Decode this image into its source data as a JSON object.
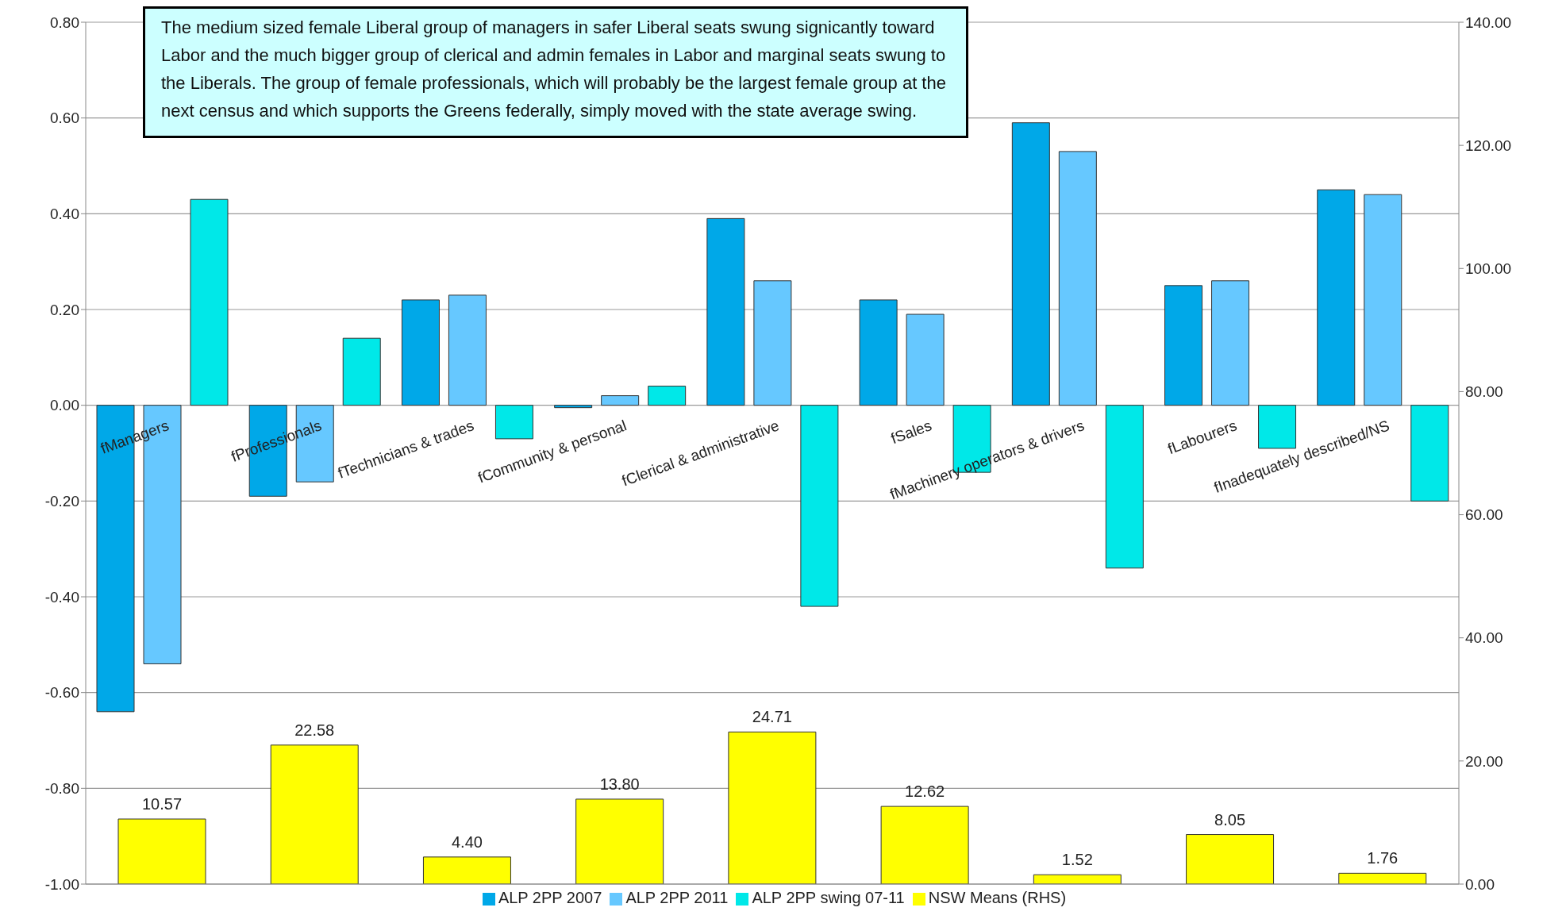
{
  "chart_data": {
    "type": "bar",
    "categories": [
      "fManagers",
      "fProfessionals",
      "fTechnicians & trades",
      "fCommunity & personal",
      "fClerical & administrative",
      "fSales",
      "fMachinery operators & drivers",
      "fLabourers",
      "fInadequately described/NS"
    ],
    "series": [
      {
        "name": "ALP 2PP 2007",
        "color": "#00a8e8",
        "values": [
          -0.64,
          -0.19,
          0.22,
          -0.005,
          0.39,
          0.22,
          0.59,
          0.25,
          0.45
        ]
      },
      {
        "name": "ALP 2PP 2011",
        "color": "#66c8ff",
        "values": [
          -0.54,
          -0.16,
          0.23,
          0.02,
          0.26,
          0.19,
          0.53,
          0.26,
          0.44
        ]
      },
      {
        "name": "ALP 2PP swing 07-11",
        "color": "#00e8e8",
        "values": [
          0.43,
          0.14,
          -0.07,
          0.04,
          -0.42,
          -0.14,
          -0.34,
          -0.09,
          -0.2
        ]
      },
      {
        "name": "NSW Means (RHS)",
        "color": "#ffff00",
        "axis": "y2",
        "values": [
          10.57,
          22.58,
          4.4,
          13.8,
          24.71,
          12.62,
          1.52,
          8.05,
          1.76
        ],
        "value_labels": [
          "10.57",
          "22.58",
          "4.40",
          "13.80",
          "24.71",
          "12.62",
          "1.52",
          "8.05",
          "1.76"
        ]
      }
    ],
    "ylim": [
      -1,
      0.8
    ],
    "yticks": [
      {
        "value": -1,
        "label": "-1.00"
      },
      {
        "value": -0.8,
        "label": "-0.80"
      },
      {
        "value": -0.6,
        "label": "-0.60"
      },
      {
        "value": -0.4,
        "label": "-0.40"
      },
      {
        "value": -0.2,
        "label": "-0.20"
      },
      {
        "value": 0,
        "label": "0.00"
      },
      {
        "value": 0.2,
        "label": "0.20"
      },
      {
        "value": 0.4,
        "label": "0.40"
      },
      {
        "value": 0.6,
        "label": "0.60"
      },
      {
        "value": 0.8,
        "label": "0.80"
      }
    ],
    "y2lim": [
      0,
      140
    ],
    "y2ticks": [
      {
        "value": 0,
        "label": "0.00"
      },
      {
        "value": 20,
        "label": "20.00"
      },
      {
        "value": 40,
        "label": "40.00"
      },
      {
        "value": 60,
        "label": "60.00"
      },
      {
        "value": 80,
        "label": "80.00"
      },
      {
        "value": 100,
        "label": "100.00"
      },
      {
        "value": 120,
        "label": "120.00"
      },
      {
        "value": 140,
        "label": "140.00"
      }
    ],
    "grid": "y",
    "legend": "bottom",
    "annotations": [
      "The medium sized female Liberal group of managers in safer Liberal seats swung signicantly toward Labor and the much bigger group of clerical and admin females in Labor and marginal seats swung to the Liberals.  The group of female professionals, which will probably be the largest female group at the next census and which supports the Greens federally, simply moved with the state average swing."
    ]
  }
}
